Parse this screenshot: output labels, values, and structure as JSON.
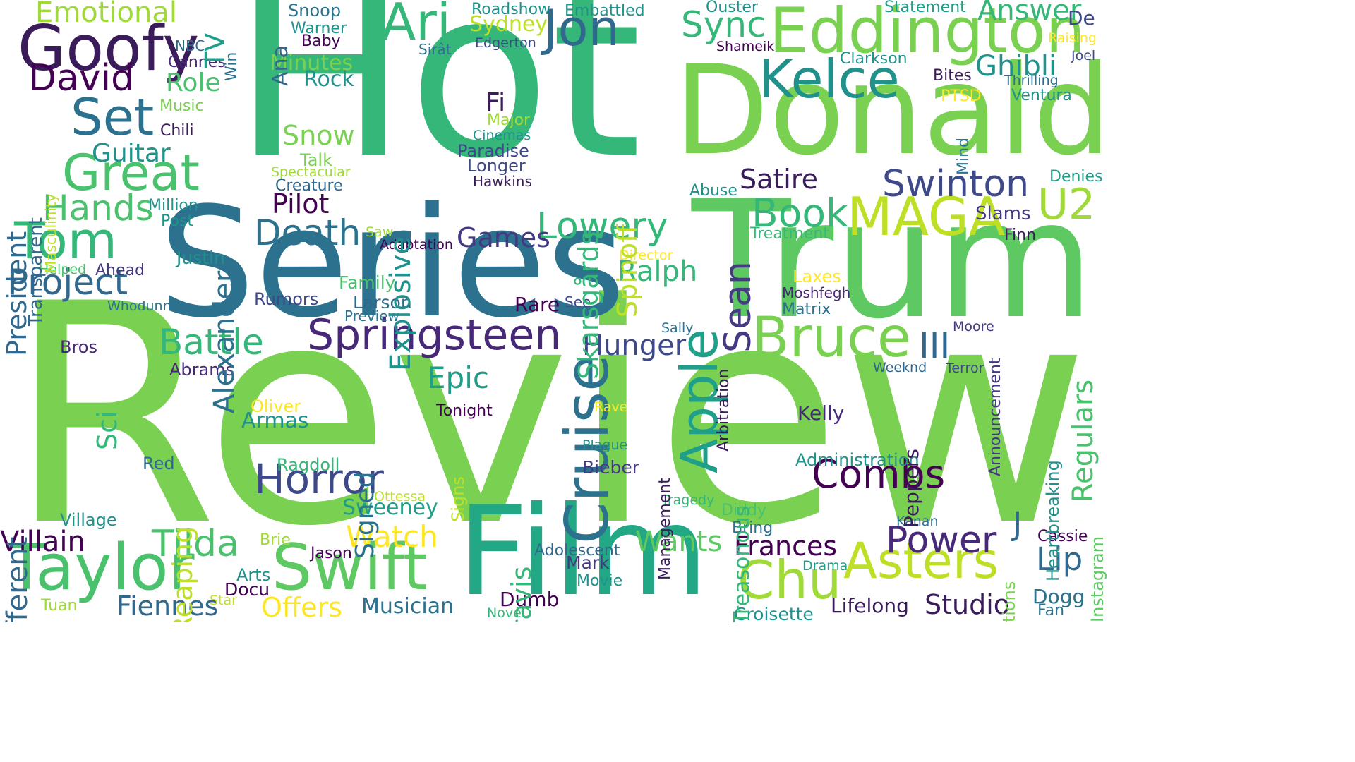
{
  "words": [
    {
      "text": "Review",
      "color": "#7ad151"
    },
    {
      "text": "Hot",
      "color": "#35b779"
    },
    {
      "text": "Series",
      "color": "#2c728e"
    },
    {
      "text": "Trump",
      "color": "#5ec962"
    },
    {
      "text": "Donald",
      "color": "#7ad151"
    },
    {
      "text": "Film",
      "color": "#22a884"
    },
    {
      "text": "Swift",
      "color": "#5ec962"
    },
    {
      "text": "Taylor",
      "color": "#4ac16d"
    },
    {
      "text": "Eddington",
      "color": "#7ad151"
    },
    {
      "text": "Goofy",
      "color": "#3b1c5a"
    },
    {
      "text": "Jon",
      "color": "#31688e"
    },
    {
      "text": "Ari",
      "color": "#35b779"
    },
    {
      "text": "Kelce",
      "color": "#21918c"
    },
    {
      "text": "MAGA",
      "color": "#bddf26"
    },
    {
      "text": "Springsteen",
      "color": "#482878"
    },
    {
      "text": "Bruce",
      "color": "#7ad151"
    },
    {
      "text": "Apple",
      "color": "#1f9e89"
    },
    {
      "text": "Cruise",
      "color": "#2c728e"
    },
    {
      "text": "Great",
      "color": "#4ac16d"
    },
    {
      "text": "Set",
      "color": "#2c728e"
    },
    {
      "text": "Tom",
      "color": "#35b779"
    },
    {
      "text": "Horror",
      "color": "#3e4989"
    },
    {
      "text": "Combs",
      "color": "#440154"
    },
    {
      "text": "Asters",
      "color": "#bddf26"
    },
    {
      "text": "Chu",
      "color": "#a0da39"
    },
    {
      "text": "David",
      "color": "#440154"
    },
    {
      "text": "Swinton",
      "color": "#3e4989"
    },
    {
      "text": "U2",
      "color": "#a0da39"
    },
    {
      "text": "Death",
      "color": "#2c728e"
    },
    {
      "text": "Battle",
      "color": "#35b779"
    },
    {
      "text": "Project",
      "color": "#31688e"
    },
    {
      "text": "Hands",
      "color": "#4ac16d"
    },
    {
      "text": "Book",
      "color": "#35b779"
    },
    {
      "text": "Lowery",
      "color": "#35b779"
    },
    {
      "text": "Tilda",
      "color": "#4ac16d"
    },
    {
      "text": "Power",
      "color": "#482878"
    },
    {
      "text": "Sync",
      "color": "#35b779"
    },
    {
      "text": "Answer",
      "color": "#35b779"
    },
    {
      "text": "Emotional",
      "color": "#a0da39"
    },
    {
      "text": "Sean",
      "color": "#443983"
    },
    {
      "text": "Hunger",
      "color": "#3e4989"
    },
    {
      "text": "Frances",
      "color": "#440154"
    },
    {
      "text": "Studio",
      "color": "#3b1c5a"
    },
    {
      "text": "Villain",
      "color": "#440154"
    },
    {
      "text": "Fiennes",
      "color": "#31688e"
    },
    {
      "text": "Offers",
      "color": "#fde725"
    },
    {
      "text": "Watch",
      "color": "#fde725"
    },
    {
      "text": "Wants",
      "color": "#5ec962"
    },
    {
      "text": "Musician",
      "color": "#2c728e"
    },
    {
      "text": "Sweeney",
      "color": "#1f9e89"
    },
    {
      "text": "Epic",
      "color": "#1f9e89"
    },
    {
      "text": "Games",
      "color": "#443983"
    },
    {
      "text": "Pilot",
      "color": "#440154"
    },
    {
      "text": "Satire",
      "color": "#3b1c5a"
    },
    {
      "text": "Ralph",
      "color": "#35b779"
    },
    {
      "text": "Ghibli",
      "color": "#21918c"
    },
    {
      "text": "Lip",
      "color": "#31688e"
    },
    {
      "text": "III",
      "color": "#31688e"
    },
    {
      "text": "Role",
      "color": "#4ac16d"
    },
    {
      "text": "Snow",
      "color": "#7ad151"
    },
    {
      "text": "Guitar",
      "color": "#21918c"
    },
    {
      "text": "Rock",
      "color": "#21918c"
    },
    {
      "text": "Minutes",
      "color": "#7ad151"
    },
    {
      "text": "Fi",
      "color": "#3b1c5a"
    },
    {
      "text": "Dumb",
      "color": "#440154"
    },
    {
      "text": "Lifelong",
      "color": "#3b1c5a"
    },
    {
      "text": "Sydney",
      "color": "#bddf26"
    },
    {
      "text": "Ahead",
      "color": "#443983"
    },
    {
      "text": "Family",
      "color": "#4ac16d"
    },
    {
      "text": "Larson",
      "color": "#31688e"
    },
    {
      "text": "Rumors",
      "color": "#3e4989"
    },
    {
      "text": "Rare",
      "color": "#440154"
    },
    {
      "text": "Abrams",
      "color": "#482878"
    },
    {
      "text": "Armas",
      "color": "#21918c"
    },
    {
      "text": "Oliver",
      "color": "#fde725"
    },
    {
      "text": "Bros",
      "color": "#482878"
    },
    {
      "text": "Jason",
      "color": "#440154"
    },
    {
      "text": "Arts",
      "color": "#21918c"
    },
    {
      "text": "Docu",
      "color": "#440154"
    },
    {
      "text": "Tuan",
      "color": "#a0da39"
    },
    {
      "text": "Village",
      "color": "#21918c"
    },
    {
      "text": "Red",
      "color": "#31688e"
    },
    {
      "text": "Brie",
      "color": "#a0da39"
    },
    {
      "text": "Kelly",
      "color": "#482878"
    },
    {
      "text": "Mark",
      "color": "#443983"
    },
    {
      "text": "Bieber",
      "color": "#443983"
    },
    {
      "text": "Justin",
      "color": "#21918c"
    },
    {
      "text": "Post",
      "color": "#21918c"
    },
    {
      "text": "Million",
      "color": "#21918c"
    },
    {
      "text": "Creature",
      "color": "#31688e"
    },
    {
      "text": "Talk",
      "color": "#7ad151"
    },
    {
      "text": "Spectacular",
      "color": "#a0da39"
    },
    {
      "text": "Paradise",
      "color": "#3e4989"
    },
    {
      "text": "Longer",
      "color": "#3e4989"
    },
    {
      "text": "Hawkins",
      "color": "#3b1c5a"
    },
    {
      "text": "Cinemas",
      "color": "#21918c"
    },
    {
      "text": "Major",
      "color": "#a0da39"
    },
    {
      "text": "Music",
      "color": "#7ad151"
    },
    {
      "text": "Chili",
      "color": "#3b1c5a"
    },
    {
      "text": "Cannes",
      "color": "#482878"
    },
    {
      "text": "NBC",
      "color": "#31688e"
    },
    {
      "text": "Snoop",
      "color": "#2c728e"
    },
    {
      "text": "Warner",
      "color": "#21918c"
    },
    {
      "text": "Baby",
      "color": "#440154"
    },
    {
      "text": "Roadshow",
      "color": "#21918c"
    },
    {
      "text": "Embattled",
      "color": "#21918c"
    },
    {
      "text": "Edgerton",
      "color": "#3e4989"
    },
    {
      "text": "Sirât",
      "color": "#2c728e"
    },
    {
      "text": "Ouster",
      "color": "#21918c"
    },
    {
      "text": "Shameik",
      "color": "#440154"
    },
    {
      "text": "Statement",
      "color": "#1f9e89"
    },
    {
      "text": "De",
      "color": "#3e4989"
    },
    {
      "text": "Raising",
      "color": "#fde725"
    },
    {
      "text": "Joel",
      "color": "#3e4989"
    },
    {
      "text": "Thrilling",
      "color": "#2c728e"
    },
    {
      "text": "Ventura",
      "color": "#21918c"
    },
    {
      "text": "Clarkson",
      "color": "#21918c"
    },
    {
      "text": "Bites",
      "color": "#3b1c5a"
    },
    {
      "text": "PTSD",
      "color": "#fde725"
    },
    {
      "text": "Denies",
      "color": "#1f9e89"
    },
    {
      "text": "Slams",
      "color": "#443983"
    },
    {
      "text": "Finn",
      "color": "#3b1c5a"
    },
    {
      "text": "Abuse",
      "color": "#21918c"
    },
    {
      "text": "Treatment",
      "color": "#35b779"
    },
    {
      "text": "Director",
      "color": "#fde725"
    },
    {
      "text": "Laxes",
      "color": "#fde725"
    },
    {
      "text": "Moshfegh",
      "color": "#482878"
    },
    {
      "text": "Matrix",
      "color": "#2c728e"
    },
    {
      "text": "Moore",
      "color": "#443983"
    },
    {
      "text": "Weeknd",
      "color": "#31688e"
    },
    {
      "text": "Terror",
      "color": "#3e4989"
    },
    {
      "text": "Sally",
      "color": "#2c728e"
    },
    {
      "text": "See",
      "color": "#3e4989"
    },
    {
      "text": "Preview",
      "color": "#2c728e"
    },
    {
      "text": "Whodunnit",
      "color": "#2c728e"
    },
    {
      "text": "Helped",
      "color": "#4ac16d"
    },
    {
      "text": "Saw",
      "color": "#a0da39"
    },
    {
      "text": "Adaptation",
      "color": "#440154"
    },
    {
      "text": "Tonight",
      "color": "#440154"
    },
    {
      "text": "Rave",
      "color": "#fde725"
    },
    {
      "text": "Plague",
      "color": "#21918c"
    },
    {
      "text": "Ragdoll",
      "color": "#35b779"
    },
    {
      "text": "Ottessa",
      "color": "#bddf26"
    },
    {
      "text": "Tragedy",
      "color": "#35b779"
    },
    {
      "text": "Diddy",
      "color": "#4ac16d"
    },
    {
      "text": "Bring",
      "color": "#2c728e"
    },
    {
      "text": "Administration",
      "color": "#21918c"
    },
    {
      "text": "Kanan",
      "color": "#2c728e"
    },
    {
      "text": "Cassie",
      "color": "#440154"
    },
    {
      "text": "Adolescent",
      "color": "#31688e"
    },
    {
      "text": "Movie",
      "color": "#21918c"
    },
    {
      "text": "Drama",
      "color": "#1f9e89"
    },
    {
      "text": "Star",
      "color": "#bddf26"
    },
    {
      "text": "Novel",
      "color": "#35b779"
    },
    {
      "text": "Croisette",
      "color": "#21918c"
    },
    {
      "text": "Dogg",
      "color": "#2c728e"
    },
    {
      "text": "Fan",
      "color": "#2c728e"
    },
    {
      "text": "J",
      "color": "#31688e"
    },
    {
      "text": "President",
      "color": "#31688e"
    },
    {
      "text": "Transparent",
      "color": "#31688e"
    },
    {
      "text": "Masculinity",
      "color": "#bddf26"
    },
    {
      "text": "TV",
      "color": "#1f9e89"
    },
    {
      "text": "Win",
      "color": "#2c728e"
    },
    {
      "text": "Ana",
      "color": "#31688e"
    },
    {
      "text": "Alexander",
      "color": "#2c728e"
    },
    {
      "text": "Explosive",
      "color": "#21918c"
    },
    {
      "text": "Skarsgårds",
      "color": "#35b779"
    },
    {
      "text": "Spinoff",
      "color": "#bddf26"
    },
    {
      "text": "Mind",
      "color": "#2c728e"
    },
    {
      "text": "Different",
      "color": "#31688e"
    },
    {
      "text": "Sci",
      "color": "#35b779"
    },
    {
      "text": "Reaping",
      "color": "#bddf26"
    },
    {
      "text": "Signed",
      "color": "#2c728e"
    },
    {
      "text": "Travis",
      "color": "#35b779"
    },
    {
      "text": "Signs",
      "color": "#bddf26"
    },
    {
      "text": "Management",
      "color": "#3b1c5a"
    },
    {
      "text": "Treasonous",
      "color": "#35b779"
    },
    {
      "text": "Arbitration",
      "color": "#3b1c5a"
    },
    {
      "text": "Announcement",
      "color": "#443983"
    },
    {
      "text": "Regulars",
      "color": "#4ac16d"
    },
    {
      "text": "Heartbreaking",
      "color": "#21918c"
    },
    {
      "text": "Peppers",
      "color": "#3b1c5a"
    },
    {
      "text": "Resurrections",
      "color": "#7ad151"
    },
    {
      "text": "Instagram",
      "color": "#5ec962"
    }
  ]
}
